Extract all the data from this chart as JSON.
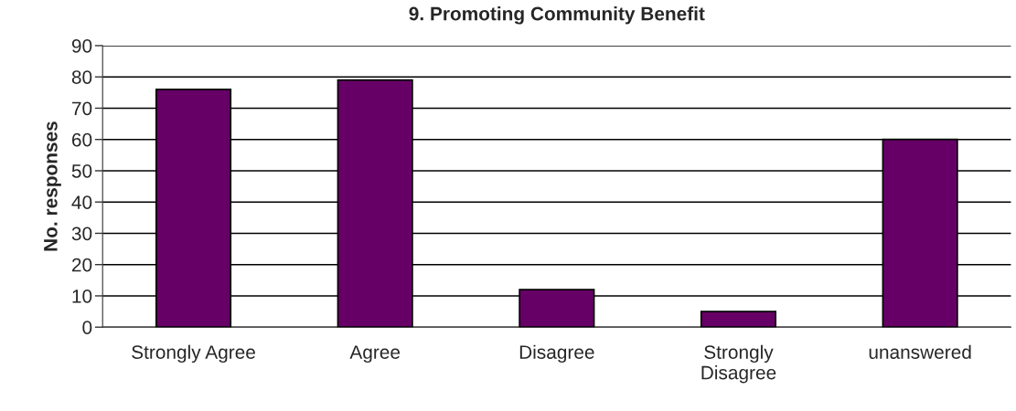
{
  "chart_data": {
    "type": "bar",
    "title": "9. Promoting Community Benefit",
    "ylabel": "No. responses",
    "categories": [
      "Strongly Agree",
      "Agree",
      "Disagree",
      "Strongly\nDisagree",
      "unanswered"
    ],
    "values": [
      76,
      79,
      12,
      5,
      60
    ],
    "color": "#660066",
    "ylim": [
      0,
      90
    ],
    "yticks": [
      0,
      10,
      20,
      30,
      40,
      50,
      60,
      70,
      80,
      90
    ],
    "grid": "y",
    "legend": false
  }
}
